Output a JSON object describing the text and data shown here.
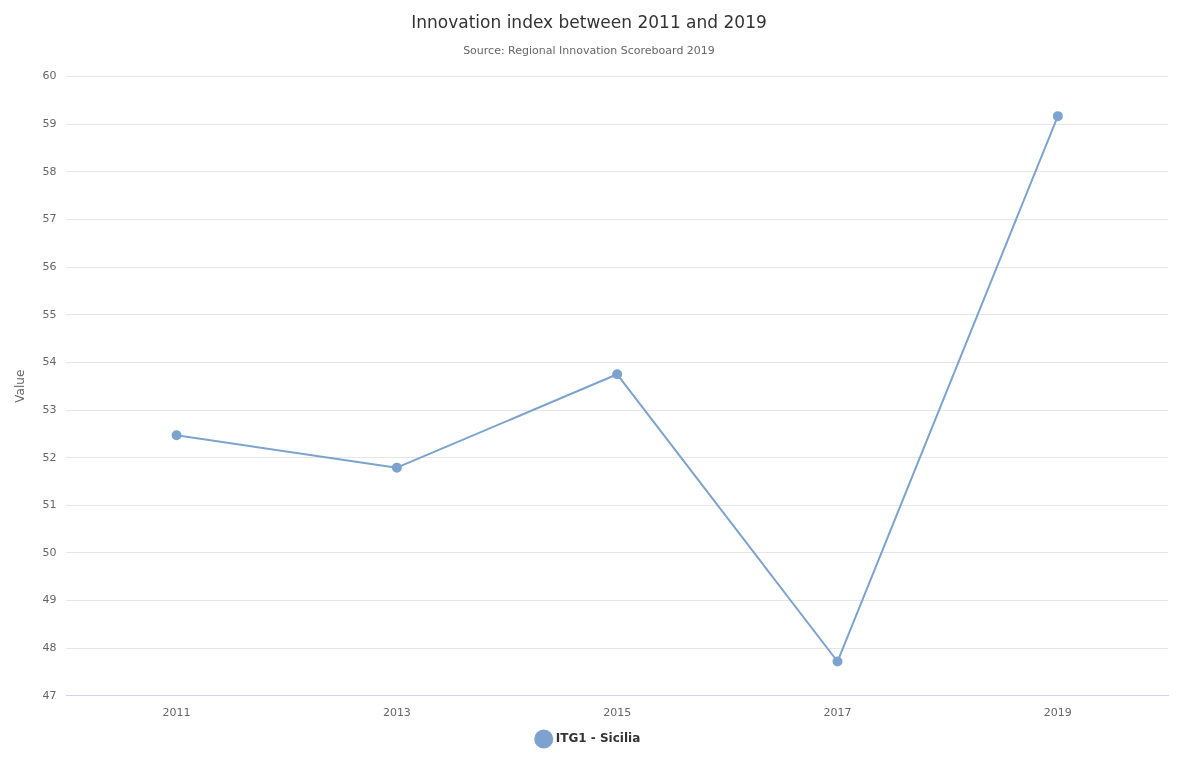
{
  "chart_data": {
    "type": "line",
    "title": "Innovation index between 2011 and 2019",
    "subtitle": "Source: Regional Innovation Scoreboard 2019",
    "ylabel": "Value",
    "categories": [
      "2011",
      "2013",
      "2015",
      "2017",
      "2019"
    ],
    "series": [
      {
        "name": "ITG1 - Sicilia",
        "color": "#7ca3cf",
        "values": [
          52.47,
          51.79,
          53.75,
          47.72,
          59.17
        ]
      }
    ],
    "ylim": [
      47,
      60
    ],
    "yticks": [
      47,
      48,
      49,
      50,
      51,
      52,
      53,
      54,
      55,
      56,
      57,
      58,
      59,
      60
    ],
    "grid": "y",
    "legend": "bottom",
    "marker": "circle",
    "line_style": "solid"
  }
}
